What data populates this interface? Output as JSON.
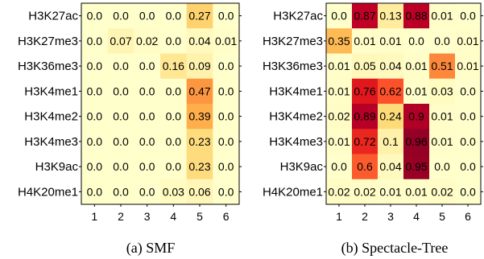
{
  "chart_data": [
    {
      "type": "heatmap",
      "title": "",
      "caption": "(a)  SMF",
      "xlabel": "",
      "ylabel": "",
      "x_categories": [
        "1",
        "2",
        "3",
        "4",
        "5",
        "6"
      ],
      "y_categories": [
        "H3K27ac",
        "H3K27me3",
        "H3K36me3",
        "H3K4me1",
        "H3K4me2",
        "H3K4me3",
        "H3K9ac",
        "H4K20me1"
      ],
      "values": [
        [
          0.0,
          0.0,
          0.0,
          0.0,
          0.27,
          0.0
        ],
        [
          0.0,
          0.07,
          0.02,
          0.0,
          0.04,
          0.01
        ],
        [
          0.0,
          0.0,
          0.0,
          0.16,
          0.09,
          0.0
        ],
        [
          0.0,
          0.0,
          0.0,
          0.0,
          0.47,
          0.0
        ],
        [
          0.0,
          0.0,
          0.0,
          0.0,
          0.39,
          0.0
        ],
        [
          0.0,
          0.0,
          0.0,
          0.0,
          0.23,
          0.0
        ],
        [
          0.0,
          0.0,
          0.0,
          0.0,
          0.23,
          0.0
        ],
        [
          0.0,
          0.0,
          0.0,
          0.03,
          0.06,
          0.0
        ]
      ],
      "value_labels": [
        [
          "0.0",
          "0.0",
          "0.0",
          "0.0",
          "0.27",
          "0.0"
        ],
        [
          "0.0",
          "0.07",
          "0.02",
          "0.0",
          "0.04",
          "0.01"
        ],
        [
          "0.0",
          "0.0",
          "0.0",
          "0.16",
          "0.09",
          "0.0"
        ],
        [
          "0.0",
          "0.0",
          "0.0",
          "0.0",
          "0.47",
          "0.0"
        ],
        [
          "0.0",
          "0.0",
          "0.0",
          "0.0",
          "0.39",
          "0.0"
        ],
        [
          "0.0",
          "0.0",
          "0.0",
          "0.0",
          "0.23",
          "0.0"
        ],
        [
          "0.0",
          "0.0",
          "0.0",
          "0.0",
          "0.23",
          "0.0"
        ],
        [
          "0.0",
          "0.0",
          "0.0",
          "0.03",
          "0.06",
          "0.0"
        ]
      ],
      "color_range": [
        0,
        1
      ],
      "colormap": [
        "#ffffcc",
        "#ffeda0",
        "#fed976",
        "#feb24c",
        "#fd8d3c",
        "#fc4e2a",
        "#e31a1c",
        "#bd0026",
        "#800026"
      ],
      "grid": false
    },
    {
      "type": "heatmap",
      "title": "",
      "caption": "(b)  Spectacle-Tree",
      "xlabel": "",
      "ylabel": "",
      "x_categories": [
        "1",
        "2",
        "3",
        "4",
        "5",
        "6"
      ],
      "y_categories": [
        "H3K27ac",
        "H3K27me3",
        "H3K36me3",
        "H3K4me1",
        "H3K4me2",
        "H3K4me3",
        "H3K9ac",
        "H4K20me1"
      ],
      "values": [
        [
          0.0,
          0.87,
          0.13,
          0.88,
          0.01,
          0.0
        ],
        [
          0.35,
          0.01,
          0.01,
          0.0,
          0.0,
          0.01
        ],
        [
          0.01,
          0.05,
          0.04,
          0.01,
          0.51,
          0.01
        ],
        [
          0.01,
          0.76,
          0.62,
          0.01,
          0.03,
          0.0
        ],
        [
          0.02,
          0.89,
          0.24,
          0.9,
          0.01,
          0.0
        ],
        [
          0.01,
          0.72,
          0.1,
          0.96,
          0.01,
          0.0
        ],
        [
          0.0,
          0.6,
          0.04,
          0.95,
          0.0,
          0.0
        ],
        [
          0.02,
          0.02,
          0.01,
          0.01,
          0.02,
          0.0
        ]
      ],
      "value_labels": [
        [
          "0.0",
          "0.87",
          "0.13",
          "0.88",
          "0.01",
          "0.0"
        ],
        [
          "0.35",
          "0.01",
          "0.01",
          "0.0",
          "0.0",
          "0.01"
        ],
        [
          "0.01",
          "0.05",
          "0.04",
          "0.01",
          "0.51",
          "0.01"
        ],
        [
          "0.01",
          "0.76",
          "0.62",
          "0.01",
          "0.03",
          "0.0"
        ],
        [
          "0.02",
          "0.89",
          "0.24",
          "0.9",
          "0.01",
          "0.0"
        ],
        [
          "0.01",
          "0.72",
          "0.1",
          "0.96",
          "0.01",
          "0.0"
        ],
        [
          "0.0",
          "0.6",
          "0.04",
          "0.95",
          "0.0",
          "0.0"
        ],
        [
          "0.02",
          "0.02",
          "0.01",
          "0.01",
          "0.02",
          "0.0"
        ]
      ],
      "color_range": [
        0,
        1
      ],
      "colormap": [
        "#ffffcc",
        "#ffeda0",
        "#fed976",
        "#feb24c",
        "#fd8d3c",
        "#fc4e2a",
        "#e31a1c",
        "#bd0026",
        "#800026"
      ],
      "grid": false
    }
  ]
}
